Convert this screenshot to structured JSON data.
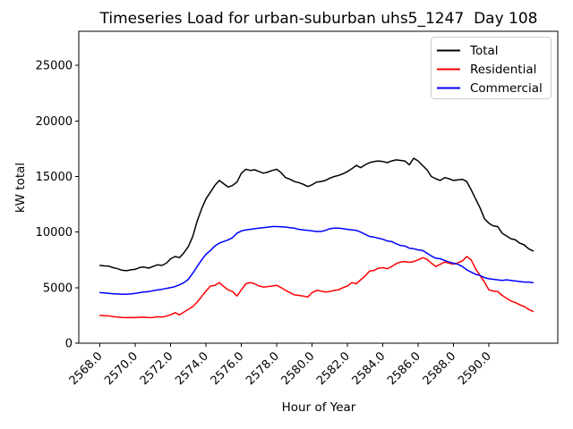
{
  "window": {
    "background": "#ffffff"
  },
  "chart_data": {
    "type": "line",
    "title": "Timeseries Load for urban-suburban uhs5_1247  Day 108",
    "xlabel": "Hour of Year",
    "ylabel": "kW total",
    "grid": false,
    "legend_position": "upper-right",
    "xlim": [
      2566.8,
      2593.9
    ],
    "ylim": [
      0,
      28070
    ],
    "xticks": [
      2568,
      2570,
      2572,
      2574,
      2576,
      2578,
      2580,
      2582,
      2584,
      2586,
      2588,
      2590
    ],
    "xtick_labels": [
      "2568.0",
      "2570.0",
      "2572.0",
      "2574.0",
      "2576.0",
      "2578.0",
      "2580.0",
      "2582.0",
      "2584.0",
      "2586.0",
      "2588.0",
      "2590.0"
    ],
    "yticks": [
      0,
      5000,
      10000,
      15000,
      20000,
      25000
    ],
    "ytick_labels": [
      "0",
      "5000",
      "10000",
      "15000",
      "20000",
      "25000"
    ],
    "x_start": 2568.0,
    "x_step": 0.25,
    "n_points": 99,
    "axis_color": "#000000",
    "legend_border_color": "#cccccc",
    "series": [
      {
        "name": "Total",
        "color": "#000000",
        "values": [
          7000,
          6960,
          6930,
          6800,
          6700,
          6560,
          6520,
          6600,
          6650,
          6810,
          6850,
          6760,
          6900,
          7050,
          7000,
          7200,
          7600,
          7800,
          7700,
          8150,
          8700,
          9600,
          11000,
          12100,
          13000,
          13600,
          14200,
          14650,
          14350,
          14050,
          14200,
          14500,
          15300,
          15650,
          15550,
          15600,
          15450,
          15300,
          15400,
          15550,
          15650,
          15350,
          14900,
          14750,
          14550,
          14450,
          14300,
          14100,
          14250,
          14500,
          14550,
          14650,
          14850,
          15000,
          15100,
          15250,
          15450,
          15700,
          16000,
          15800,
          16050,
          16250,
          16350,
          16400,
          16350,
          16250,
          16400,
          16500,
          16450,
          16400,
          16050,
          16650,
          16400,
          16000,
          15600,
          15000,
          14800,
          14650,
          14900,
          14800,
          14650,
          14700,
          14750,
          14550,
          13800,
          13000,
          12200,
          11200,
          10800,
          10550,
          10500,
          9900,
          9650,
          9400,
          9300,
          9000,
          8850,
          8500,
          8300
        ]
      },
      {
        "name": "Residential",
        "color": "#ff0000",
        "values": [
          2500,
          2480,
          2460,
          2400,
          2350,
          2310,
          2300,
          2310,
          2300,
          2330,
          2340,
          2300,
          2320,
          2380,
          2350,
          2440,
          2560,
          2750,
          2550,
          2810,
          3050,
          3300,
          3700,
          4200,
          4700,
          5150,
          5200,
          5450,
          5100,
          4800,
          4650,
          4250,
          4800,
          5350,
          5450,
          5350,
          5150,
          5050,
          5100,
          5150,
          5200,
          5000,
          4750,
          4550,
          4350,
          4300,
          4250,
          4150,
          4550,
          4750,
          4700,
          4600,
          4650,
          4750,
          4800,
          5000,
          5150,
          5450,
          5350,
          5700,
          6050,
          6500,
          6550,
          6750,
          6800,
          6700,
          6900,
          7150,
          7300,
          7350,
          7280,
          7350,
          7500,
          7700,
          7550,
          7200,
          6900,
          7100,
          7300,
          7200,
          7100,
          7250,
          7400,
          7800,
          7500,
          6700,
          6100,
          5500,
          4800,
          4700,
          4650,
          4300,
          4050,
          3800,
          3650,
          3450,
          3300,
          3050,
          2850
        ]
      },
      {
        "name": "Commercial",
        "color": "#0000ff",
        "values": [
          4550,
          4520,
          4480,
          4450,
          4430,
          4410,
          4400,
          4430,
          4480,
          4550,
          4600,
          4640,
          4720,
          4790,
          4850,
          4930,
          5000,
          5100,
          5250,
          5450,
          5750,
          6300,
          6900,
          7500,
          8000,
          8350,
          8750,
          9000,
          9150,
          9300,
          9500,
          9900,
          10100,
          10200,
          10250,
          10300,
          10350,
          10400,
          10450,
          10500,
          10500,
          10480,
          10450,
          10400,
          10350,
          10250,
          10200,
          10150,
          10100,
          10050,
          10050,
          10150,
          10300,
          10350,
          10350,
          10300,
          10250,
          10200,
          10150,
          10000,
          9800,
          9600,
          9550,
          9450,
          9350,
          9200,
          9150,
          8950,
          8800,
          8750,
          8550,
          8500,
          8400,
          8350,
          8100,
          7850,
          7650,
          7600,
          7450,
          7300,
          7200,
          7100,
          6900,
          6600,
          6400,
          6200,
          6100,
          5900,
          5800,
          5750,
          5700,
          5650,
          5700,
          5650,
          5600,
          5550,
          5500,
          5500,
          5450
        ]
      }
    ]
  }
}
